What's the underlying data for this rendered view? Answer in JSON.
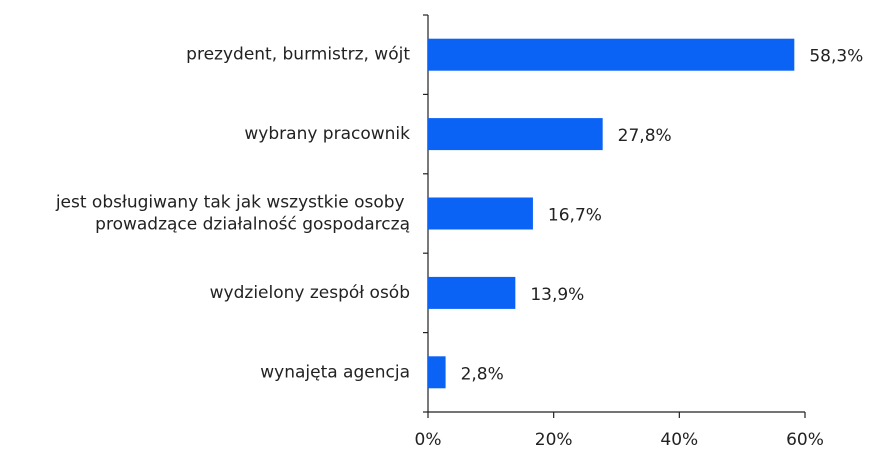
{
  "chart_data": {
    "type": "bar",
    "orientation": "horizontal",
    "categories": [
      "prezydent, burmistrz, wójt",
      "wybrany pracownik",
      "jest obsługiwany tak jak wszystkie osoby prowadzące działalność gospodarczą",
      "wydzielony zespół osób",
      "wynajęta agencja"
    ],
    "values": [
      58.3,
      27.8,
      16.7,
      13.9,
      2.8
    ],
    "value_labels": [
      "58,3%",
      "27,8%",
      "16,7%",
      "13,9%",
      "2,8%"
    ],
    "color": "#0b63f5",
    "xlim": [
      0,
      60
    ],
    "xticks": [
      {
        "value": 0,
        "label": "0%"
      },
      {
        "value": 20,
        "label": "20%"
      },
      {
        "value": 40,
        "label": "40%"
      },
      {
        "value": 60,
        "label": "60%"
      }
    ],
    "grid": false
  }
}
